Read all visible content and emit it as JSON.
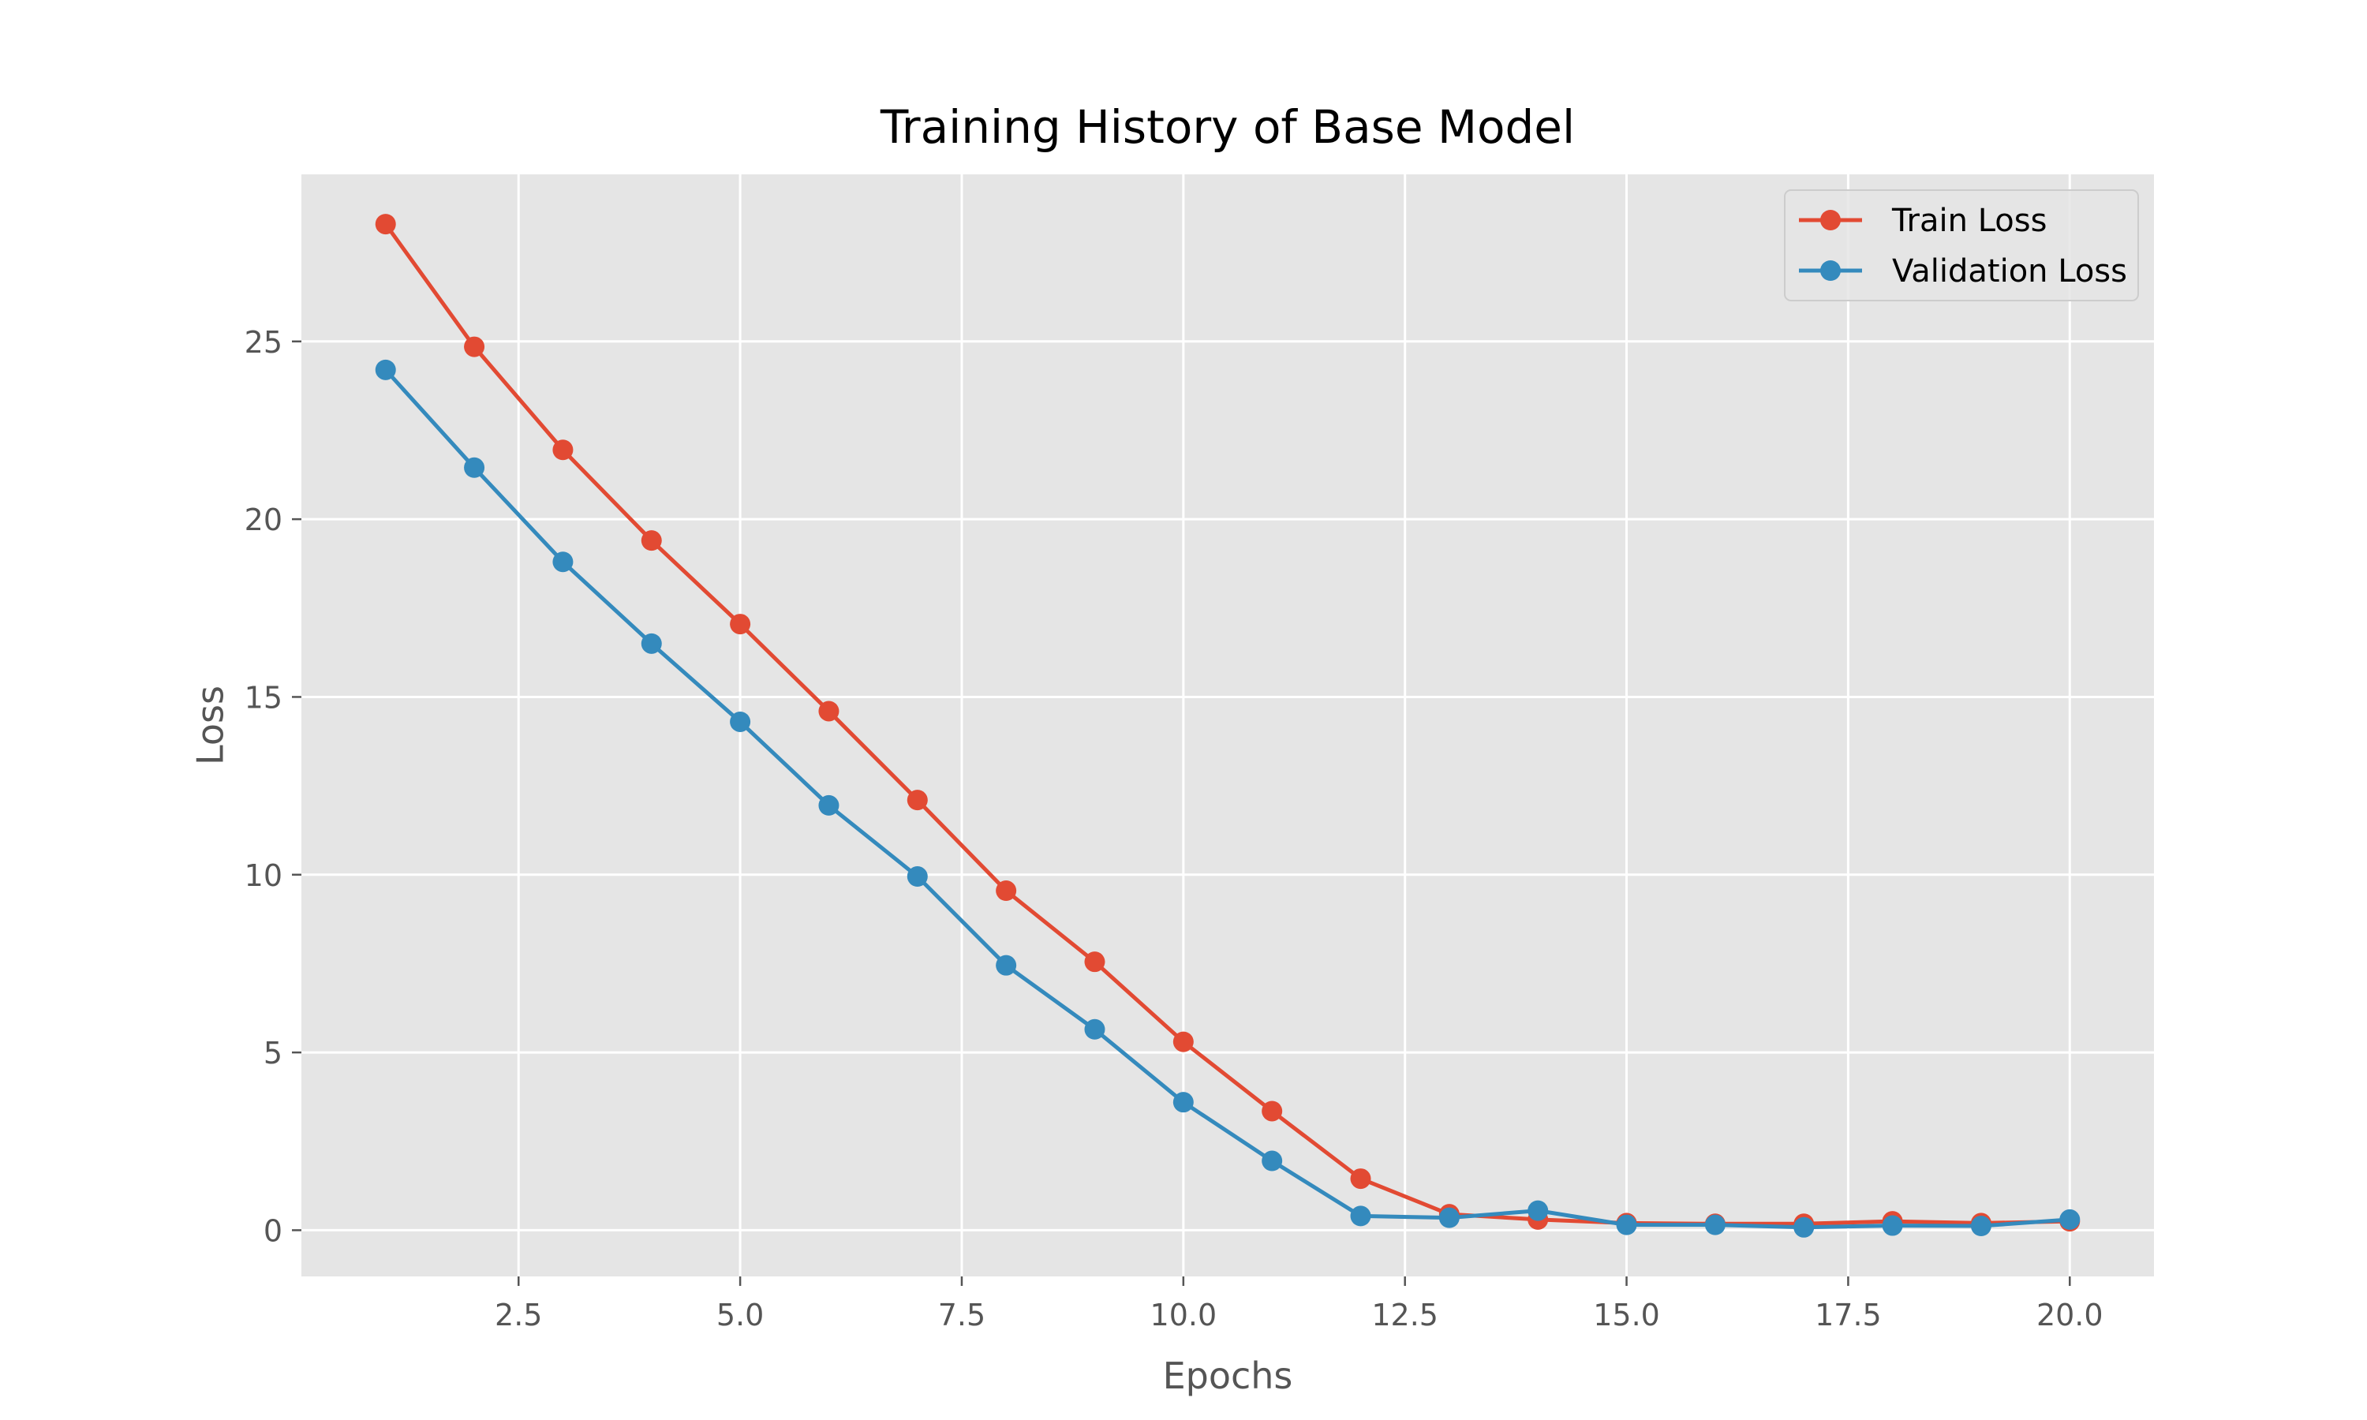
{
  "chart_data": {
    "type": "line",
    "title": "Training History of Base Model",
    "xlabel": "Epochs",
    "ylabel": "Loss",
    "x": [
      1,
      2,
      3,
      4,
      5,
      6,
      7,
      8,
      9,
      10,
      11,
      12,
      13,
      14,
      15,
      16,
      17,
      18,
      19,
      20
    ],
    "series": [
      {
        "name": "Train Loss",
        "color": "#e24a33",
        "values": [
          28.3,
          24.85,
          21.95,
          19.4,
          17.05,
          14.6,
          12.1,
          9.55,
          7.55,
          5.3,
          3.35,
          1.45,
          0.45,
          0.3,
          0.2,
          0.18,
          0.18,
          0.25,
          0.2,
          0.25
        ]
      },
      {
        "name": "Validation Loss",
        "color": "#348abd",
        "values": [
          24.2,
          21.45,
          18.8,
          16.5,
          14.3,
          11.95,
          9.95,
          7.45,
          5.65,
          3.6,
          1.95,
          0.4,
          0.35,
          0.55,
          0.15,
          0.15,
          0.08,
          0.13,
          0.12,
          0.3
        ]
      }
    ],
    "xlim": [
      0.05,
      20.95
    ],
    "ylim": [
      -1.3,
      29.7
    ],
    "xticks": [
      2.5,
      5.0,
      7.5,
      10.0,
      12.5,
      15.0,
      17.5,
      20.0
    ],
    "xtick_labels": [
      "2.5",
      "5.0",
      "7.5",
      "10.0",
      "12.5",
      "15.0",
      "17.5",
      "20.0"
    ],
    "yticks": [
      0,
      5,
      10,
      15,
      20,
      25
    ],
    "ytick_labels": [
      "0",
      "5",
      "10",
      "15",
      "20",
      "25"
    ],
    "grid": true,
    "legend_position": "top-right",
    "style": "ggplot",
    "plot_background": "#e5e5e5",
    "grid_color": "#ffffff"
  }
}
